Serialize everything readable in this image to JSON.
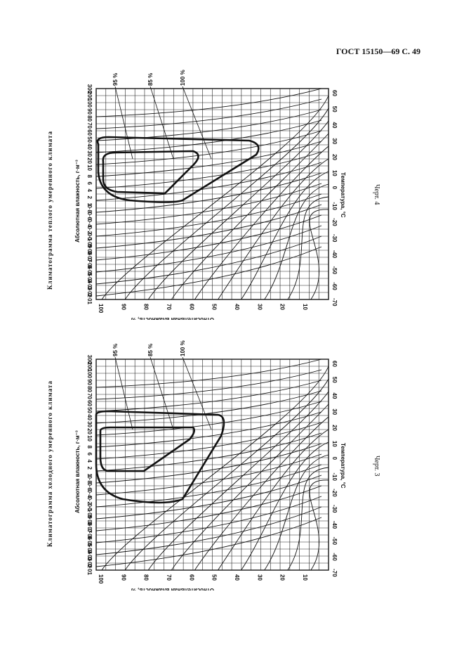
{
  "header": {
    "text": "ГОСТ 15150—69 С. 49"
  },
  "charts": [
    {
      "title": "Климатограмма теплого умеренного климата",
      "caption": "Черт. 4",
      "abs_label": "Абсолютная влажность, г·м⁻³",
      "abs_ticks": [
        "0·01",
        "0·02",
        "0·03",
        "0·04",
        "0·05",
        "0·06",
        "0·07",
        "0·08",
        "0·09",
        "0·1",
        "0·2",
        "0·4",
        "0·6",
        "0·8",
        "1",
        "2",
        "4",
        "6",
        "8",
        "10",
        "20",
        "30",
        "40",
        "50",
        "60",
        "70",
        "80",
        "90",
        "100",
        "200",
        "300"
      ],
      "rel_label": "Относительная влажность, %",
      "rel_ticks": [
        "100",
        "90",
        "80",
        "70",
        "60",
        "50",
        "40",
        "30",
        "20",
        "10"
      ],
      "temp_label": "Температура, °C",
      "temp_ticks": [
        "-70",
        "-60",
        "-50",
        "-40",
        "-30",
        "-20",
        "-10",
        "0",
        "10",
        "20",
        "30",
        "40",
        "50",
        "60"
      ],
      "pct_labels": [
        "95 %",
        "85 %",
        "100 %"
      ]
    },
    {
      "title": "Климатограмма холодного умеренного климата",
      "caption": "Черт. 3",
      "abs_label": "Абсолютная влажность, г·м⁻³",
      "abs_ticks": [
        "0·01",
        "0·02",
        "0·03",
        "0·04",
        "0·05",
        "0·06",
        "0·07",
        "0·08",
        "0·09",
        "0·1",
        "0·2",
        "0·4",
        "0·6",
        "0·8",
        "1",
        "2",
        "4",
        "6",
        "8",
        "10",
        "20",
        "30",
        "40",
        "50",
        "60",
        "70",
        "80",
        "90",
        "100",
        "200",
        "300"
      ],
      "rel_label": "Относительная влажность, %",
      "rel_ticks": [
        "100",
        "90",
        "80",
        "70",
        "60",
        "50",
        "40",
        "30",
        "20",
        "10"
      ],
      "temp_label": "Температура, °C",
      "temp_ticks": [
        "-70",
        "-60",
        "-50",
        "-40",
        "-30",
        "-20",
        "-10",
        "0",
        "10",
        "20",
        "30",
        "40",
        "50",
        "60"
      ],
      "pct_labels": [
        "95 %",
        "85 %",
        "100 %"
      ]
    }
  ]
}
